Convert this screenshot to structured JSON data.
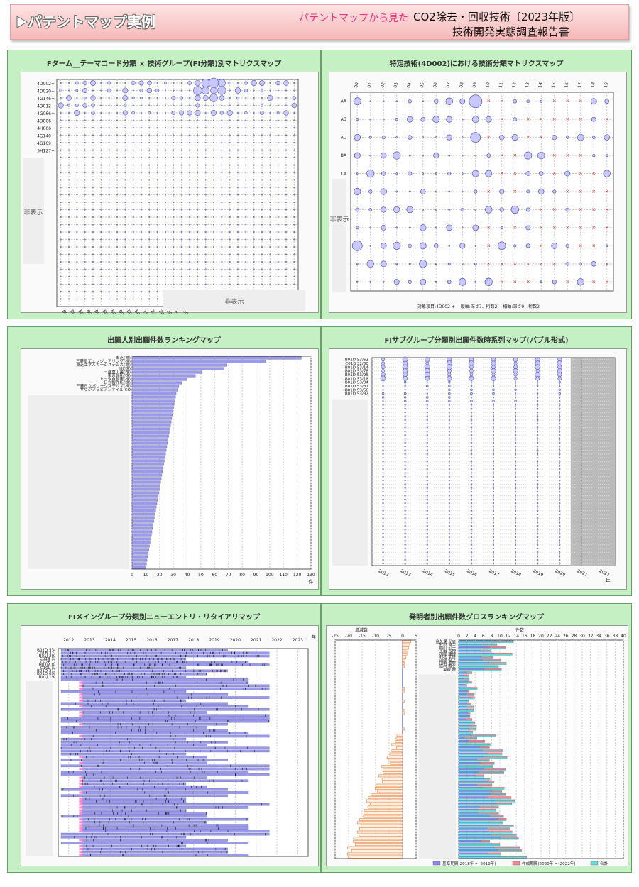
{
  "header": {
    "main_title": "パテントマップ実例",
    "pink_subtitle": "パテントマップから見た",
    "report_title": "CO2除去・回収技術〔2023年版〕",
    "report_subtitle": "技術開発実態調査報告書"
  },
  "panels": {
    "p1": {
      "title": "Fターム__テーマコード分類 × 技術グループ(FI分類)別マトリクスマップ",
      "row_labels": [
        "4D002+",
        "4D020+",
        "4G146+",
        "4D012+",
        "4G066+",
        "4D006+",
        "4H006+",
        "4G140+",
        "4G169+",
        "5H127+"
      ],
      "col_labels": [
        "B01D 53/00",
        "B01D 53/02",
        "B01D 53/04",
        "B01D 53/06",
        "B01D 53/14",
        "B01D 53/18",
        "B01D 53/22",
        "B01D 53/26",
        "B01D 53/34",
        "B01D 53/34",
        "110",
        "220",
        "240",
        "500",
        "A",
        "100"
      ],
      "hidden_v": "非表示",
      "hidden_h": "非表示"
    },
    "p2": {
      "title": "特定技術(4D002)における技術分類マトリクスマップ",
      "col_labels": [
        "00",
        "01",
        "02",
        "03",
        "04",
        "05",
        "06",
        "07",
        "08",
        "09",
        "10",
        "11",
        "12",
        "13",
        "14",
        "15",
        "16",
        "17",
        "18",
        "19"
      ],
      "row_labels": [
        "AA",
        "AB",
        "AC",
        "BA",
        "CA"
      ],
      "hidden_v": "非表示",
      "footnote": "対象項目:4D002 +　 縦軸:深さ7、桁数2　 横軸:深さ9、桁数2"
    },
    "p3": {
      "title": "出願人別出願件数ランキングマップ",
      "labels": [
        "東芝(株)",
        "三菱重工エンジニアリング(株)",
        "東芝エネルギーシステムズ(株)",
        "IHI(株)",
        "三菱重工業(株)",
        "東京瓦斯(株)",
        "トヨタ自動車(株)",
        "日立製作所(株)",
        "三菱日立パワーシステムズ(株)",
        "サウジアラビアンオイル CO"
      ],
      "values": [
        123,
        97,
        69,
        67,
        51,
        46,
        40,
        36,
        34,
        33
      ],
      "x_ticks": [
        "0",
        "10",
        "20",
        "30",
        "40",
        "50",
        "60",
        "70",
        "80",
        "90",
        "100",
        "110",
        "120",
        "130"
      ],
      "x_unit": "件"
    },
    "p4": {
      "title": "FIサブグループ分類別出願件数時系列マップ(バブル形式)",
      "row_labels": [
        "B01D 53/62",
        "C01B 32/50",
        "B01D 53/14",
        "B01D 53/78",
        "B01D 53/96",
        "B01D 53/18",
        "B01D 53/04",
        "B01D 53/81",
        "B01D 53/50",
        "B01D 53/82"
      ],
      "years": [
        "2012",
        "2013",
        "2014",
        "2015",
        "2016",
        "2017",
        "2018",
        "2019",
        "2020",
        "2021",
        "2022"
      ],
      "x_unit": "年"
    },
    "p5": {
      "title": "FIメイングループ分類別ニューエントリ・リタイアリマップ",
      "row_labels": [
        "B01D 53/",
        "C01B 32/",
        "B01J 20/",
        "C01B 3/",
        "C02F 1/",
        "H01M 8/",
        "C10L 3/",
        "B01D 21/",
        "B01D 69/",
        "B01J 19/"
      ],
      "years": [
        "2012",
        "2013",
        "2014",
        "2015",
        "2016",
        "2017",
        "2018",
        "2019",
        "2020",
        "2021",
        "2022",
        "2023"
      ],
      "x_unit": "年"
    },
    "p6": {
      "title": "発明者別出願件数グロスランキングマップ",
      "left_axis_label": "増減数",
      "left_ticks": [
        "-25",
        "-20",
        "-15",
        "-10",
        "-5",
        "0",
        "5"
      ],
      "right_axis_label": "件数",
      "right_ticks": [
        "0",
        "2",
        "4",
        "6",
        "8",
        "10",
        "12",
        "14",
        "16",
        "18",
        "20",
        "22",
        "24",
        "26",
        "28",
        "30",
        "32",
        "34",
        "36",
        "38",
        "40"
      ],
      "names": [
        "金久保 光央",
        "牧野 貴至",
        "横山 公一",
        "平田 大伸",
        "加藤 康博",
        "村松 武彦",
        "内藤 俊之",
        "田中 幸男",
        "島村 照夫",
        "栗飯 暁"
      ],
      "legend": [
        "基準期間(2018年 〜 2019年)",
        "作成期間(2020年 〜 2022年)",
        "合計"
      ],
      "colors": {
        "base": "#8888ee",
        "current": "#ee8899",
        "total": "#66dddd"
      }
    }
  }
}
